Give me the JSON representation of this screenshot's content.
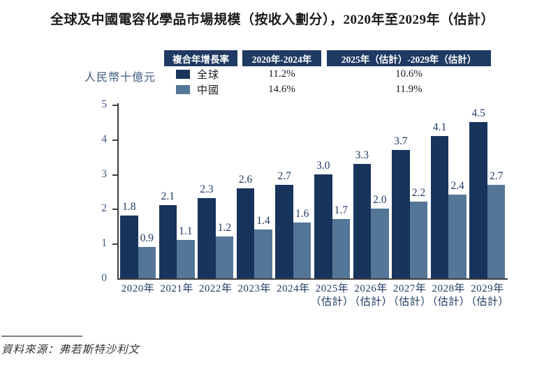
{
  "title": "全球及中國電容化學品市場規模（按收入劃分），2020年至2029年（估計）",
  "cagr_table": {
    "headers": [
      "複合年增長率",
      "2020年-2024年",
      "2025年（估計）-2029年（估計）"
    ],
    "rows": [
      {
        "label": "全球",
        "color": "#18345c",
        "cagr_2020_2024": "11.2%",
        "cagr_2025_2029": "10.6%"
      },
      {
        "label": "中國",
        "color": "#547697",
        "cagr_2020_2024": "14.6%",
        "cagr_2025_2029": "11.9%"
      }
    ]
  },
  "chart_data": {
    "type": "bar",
    "title": "全球及中國電容化學品市場規模（按收入劃分），2020年至2029年（估計）",
    "ylabel": "人民幣十億元",
    "ylim": [
      0,
      5
    ],
    "yticks": [
      0,
      1,
      2,
      3,
      4,
      5
    ],
    "grid": false,
    "value_labels": true,
    "legend_position": "top",
    "categories": [
      {
        "label": "2020年",
        "sublabel": ""
      },
      {
        "label": "2021年",
        "sublabel": ""
      },
      {
        "label": "2022年",
        "sublabel": ""
      },
      {
        "label": "2023年",
        "sublabel": ""
      },
      {
        "label": "2024年",
        "sublabel": ""
      },
      {
        "label": "2025年",
        "sublabel": "（估計）"
      },
      {
        "label": "2026年",
        "sublabel": "（估計）"
      },
      {
        "label": "2027年",
        "sublabel": "（估計）"
      },
      {
        "label": "2028年",
        "sublabel": "（估計）"
      },
      {
        "label": "2029年",
        "sublabel": "（估計）"
      }
    ],
    "series": [
      {
        "name": "全球",
        "color": "#18345c",
        "values": [
          1.8,
          2.1,
          2.3,
          2.6,
          2.7,
          3.0,
          3.3,
          3.7,
          4.1,
          4.5
        ]
      },
      {
        "name": "中國",
        "color": "#547697",
        "values": [
          0.9,
          1.1,
          1.2,
          1.4,
          1.6,
          1.7,
          2.0,
          2.2,
          2.4,
          2.7
        ]
      }
    ]
  },
  "source": "資料來源：弗若斯特沙利文"
}
